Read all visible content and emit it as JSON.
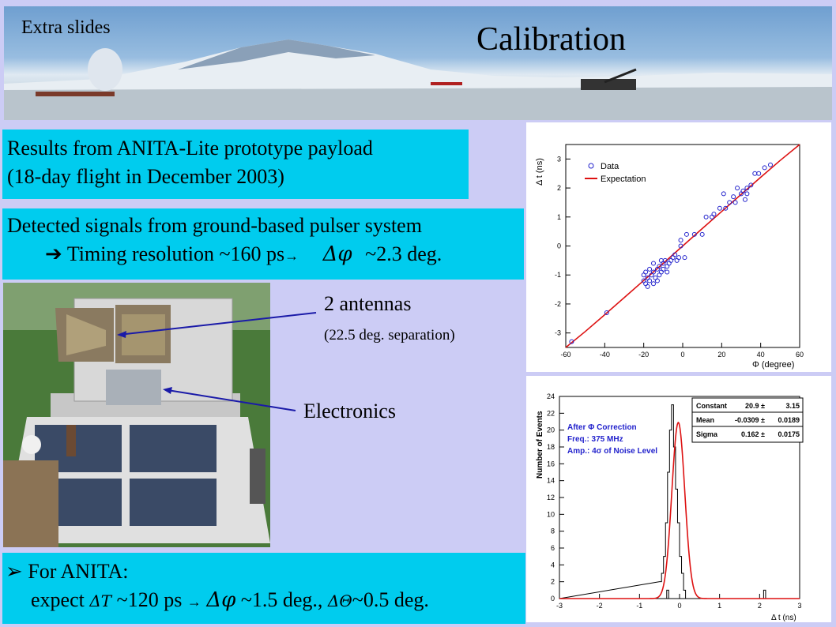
{
  "header": {
    "extra_label": "Extra slides",
    "title": "Calibration"
  },
  "results": {
    "line1": "Results from ANITA-Lite prototype payload",
    "line2": "(18-day flight in December 2003)"
  },
  "detected": {
    "line1": "Detected signals from ground-based pulser system",
    "arrow": "➔",
    "timing": "Timing resolution ~160 ps",
    "arrow2": "→",
    "delta_phi": "Δφ",
    "deg": "~2.3 deg."
  },
  "photo_labels": {
    "antennas": "2 antennas",
    "separation": "(22.5 deg. separation)",
    "electronics": "Electronics"
  },
  "anita": {
    "bullet": "➢",
    "line1": "For ANITA:",
    "expect": "expect",
    "delta_t": "ΔT",
    "ps": "~120 ps",
    "arrow": "→",
    "delta_phi": "Δφ",
    "phi_deg": "~1.5 deg.,",
    "delta_theta": "ΔΘ",
    "theta_deg": "~0.5 deg."
  },
  "colors": {
    "cyan": "#00ccee",
    "background": "#ccccf5",
    "fit": "#dd1111",
    "data": "#2222cc"
  },
  "chart_data": [
    {
      "type": "scatter",
      "xlabel": "Φ (degree)",
      "ylabel": "Δ t (ns)",
      "xlim": [
        -60,
        60
      ],
      "ylim": [
        -3.5,
        3.5
      ],
      "x_ticks": [
        -60,
        -40,
        -20,
        0,
        20,
        40,
        60
      ],
      "y_ticks": [
        -3,
        -2,
        -1,
        0,
        1,
        2,
        3
      ],
      "legend": {
        "position": "top-left",
        "entries": [
          "Data",
          "Expectation"
        ]
      },
      "series": [
        {
          "name": "Data",
          "points": [
            [
              -57,
              -3.3
            ],
            [
              -39,
              -2.3
            ],
            [
              -20,
              -1.0
            ],
            [
              -20,
              -1.2
            ],
            [
              -19,
              -1.3
            ],
            [
              -19,
              -0.9
            ],
            [
              -18,
              -1.1
            ],
            [
              -18,
              -1.4
            ],
            [
              -17,
              -0.8
            ],
            [
              -17,
              -1.2
            ],
            [
              -16,
              -1.0
            ],
            [
              -15,
              -1.3
            ],
            [
              -15,
              -0.9
            ],
            [
              -14,
              -1.1
            ],
            [
              -13,
              -0.8
            ],
            [
              -12,
              -1.0
            ],
            [
              -12,
              -0.7
            ],
            [
              -11,
              -0.9
            ],
            [
              -10,
              -0.6
            ],
            [
              -10,
              -0.8
            ],
            [
              -9,
              -0.5
            ],
            [
              -8,
              -0.7
            ],
            [
              -8,
              -0.9
            ],
            [
              -7,
              -0.6
            ],
            [
              -6,
              -0.5
            ],
            [
              -15,
              -0.6
            ],
            [
              -13,
              -1.2
            ],
            [
              -11,
              -0.5
            ],
            [
              -5,
              -0.4
            ],
            [
              -4,
              -0.3
            ],
            [
              -3,
              -0.5
            ],
            [
              -2,
              -0.4
            ],
            [
              -1,
              0.0
            ],
            [
              -1,
              0.2
            ],
            [
              1,
              -0.4
            ],
            [
              2,
              0.4
            ],
            [
              6,
              0.4
            ],
            [
              10,
              0.4
            ],
            [
              12,
              1.0
            ],
            [
              15,
              1.0
            ],
            [
              16,
              1.1
            ],
            [
              19,
              1.3
            ],
            [
              21,
              1.8
            ],
            [
              22,
              1.3
            ],
            [
              24,
              1.5
            ],
            [
              26,
              1.7
            ],
            [
              27,
              1.5
            ],
            [
              28,
              2.0
            ],
            [
              30,
              1.8
            ],
            [
              31,
              1.9
            ],
            [
              32,
              1.6
            ],
            [
              33,
              1.8
            ],
            [
              33,
              2.0
            ],
            [
              35,
              2.1
            ],
            [
              37,
              2.5
            ],
            [
              39,
              2.5
            ],
            [
              42,
              2.7
            ],
            [
              45,
              2.8
            ]
          ]
        },
        {
          "name": "Expectation",
          "points": [
            [
              -60,
              -3.5
            ],
            [
              -50,
              -2.95
            ],
            [
              -40,
              -2.37
            ],
            [
              -30,
              -1.78
            ],
            [
              -20,
              -1.19
            ],
            [
              -10,
              -0.6
            ],
            [
              0,
              0.0
            ],
            [
              10,
              0.6
            ],
            [
              20,
              1.19
            ],
            [
              30,
              1.78
            ],
            [
              40,
              2.37
            ],
            [
              50,
              2.95
            ],
            [
              60,
              3.5
            ]
          ]
        }
      ]
    },
    {
      "type": "bar",
      "xlabel": "Δ t (ns)",
      "ylabel": "Number of Events",
      "xlim": [
        -3,
        3
      ],
      "ylim": [
        0,
        24
      ],
      "x_ticks": [
        -3,
        -2,
        -1,
        0,
        1,
        2,
        3
      ],
      "y_ticks": [
        0,
        2,
        4,
        6,
        8,
        10,
        12,
        14,
        16,
        18,
        20,
        22,
        24
      ],
      "annotations": [
        "After Φ Correction",
        "Freq.: 375 MHz",
        "Amp.: 4σ of Noise Level"
      ],
      "stats": [
        {
          "name": "Constant",
          "value": "20.9 ±",
          "error": "3.15"
        },
        {
          "name": "Mean",
          "value": "-0.0309 ±",
          "error": "0.0189"
        },
        {
          "name": "Sigma",
          "value": "0.162 ±",
          "error": "0.0175"
        }
      ],
      "bin_edges_start": -0.5,
      "bin_width": 0.05,
      "values": [
        2,
        3,
        5,
        9,
        15,
        20,
        23,
        18,
        13,
        9,
        5,
        3,
        1,
        0
      ],
      "outlier_bins": [
        {
          "x": -0.32,
          "value": 1
        },
        {
          "x": 2.1,
          "value": 1
        }
      ],
      "fit": {
        "name": "Gaussian fit",
        "constant": 20.9,
        "mean": -0.0309,
        "sigma": 0.162
      }
    }
  ]
}
